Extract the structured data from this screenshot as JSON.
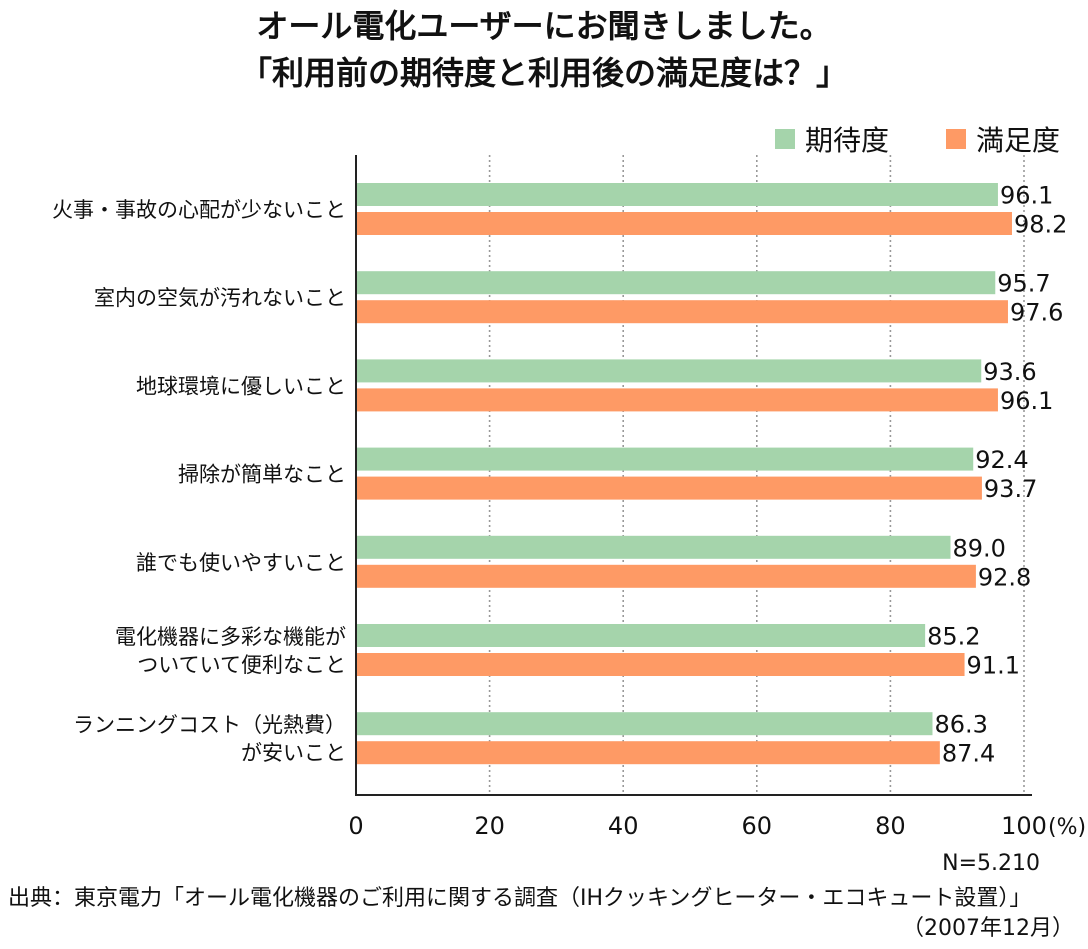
{
  "title": {
    "line1": "オール電化ユーザーにお聞きしました。",
    "line2": "「利用前の期待度と利用後の満足度は？」"
  },
  "legend": {
    "expectation": "期待度",
    "satisfaction": "満足度"
  },
  "colors": {
    "expectation": "#a5d4ab",
    "satisfaction": "#fe9a65",
    "grid": "#999999",
    "axis": "#222222"
  },
  "chart_data": {
    "type": "bar",
    "orientation": "horizontal",
    "title": "オール電化ユーザーにお聞きしました。「利用前の期待度と利用後の満足度は？」",
    "categories": [
      [
        "火事・事故の心配が少ないこと"
      ],
      [
        "室内の空気が汚れないこと"
      ],
      [
        "地球環境に優しいこと"
      ],
      [
        "掃除が簡単なこと"
      ],
      [
        "誰でも使いやすいこと"
      ],
      [
        "電化機器に多彩な機能が",
        "ついていて便利なこと"
      ],
      [
        "ランニングコスト（光熱費）",
        "が安いこと"
      ]
    ],
    "series": [
      {
        "name": "期待度",
        "values": [
          96.1,
          95.7,
          93.6,
          92.4,
          89.0,
          85.2,
          86.3
        ]
      },
      {
        "name": "満足度",
        "values": [
          98.2,
          97.6,
          96.1,
          93.7,
          92.8,
          91.1,
          87.4
        ]
      }
    ],
    "xlim": [
      0,
      100
    ],
    "xticks": [
      "0",
      "20",
      "40",
      "60",
      "80",
      "100"
    ],
    "xunit": "(%)",
    "grid": true,
    "legend_position": "top-right"
  },
  "footer": {
    "sample_size": "N=5.210",
    "source": "出典：東京電力「オール電化機器のご利用に関する調査（IHクッキングヒーター・エコキュート設置）」",
    "date": "（2007年12月）"
  }
}
